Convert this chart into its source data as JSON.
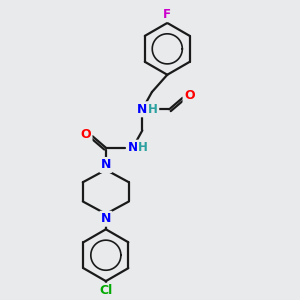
{
  "background_color": "#e8eaec",
  "bond_color": "#1a1a1a",
  "atom_colors": {
    "N": "#0000ff",
    "O": "#ff0000",
    "F": "#cc00cc",
    "Cl": "#00aa00",
    "H_label": "#2aa0a0",
    "C": "#1a1a1a"
  },
  "figsize": [
    3.0,
    3.0
  ],
  "dpi": 100,
  "lw": 1.6
}
